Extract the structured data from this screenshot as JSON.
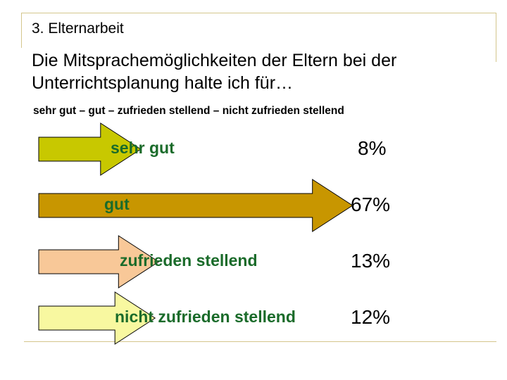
{
  "slide": {
    "section_title": "3. Elternarbeit",
    "question": "Die Mitsprachemöglichkeiten der Eltern bei der Unterrichtsplanung halte ich für…",
    "scale_text": "sehr gut – gut – zufrieden stellend – nicht zufrieden stellend"
  },
  "colors": {
    "rule": "#d4c68c",
    "label_text": "#1a6b2a"
  },
  "chart_data": {
    "type": "bar",
    "categories": [
      "sehr gut",
      "gut",
      "zufrieden stellend",
      "nicht zufrieden stellend"
    ],
    "values": [
      8,
      67,
      13,
      12
    ],
    "value_labels": [
      "8%",
      "67%",
      "13%",
      "12%"
    ],
    "colors": [
      "#c8c800",
      "#c89600",
      "#f8c898",
      "#f8f8a0"
    ],
    "title": "",
    "xlabel": "",
    "ylabel": "",
    "ylim": [
      0,
      100
    ]
  }
}
